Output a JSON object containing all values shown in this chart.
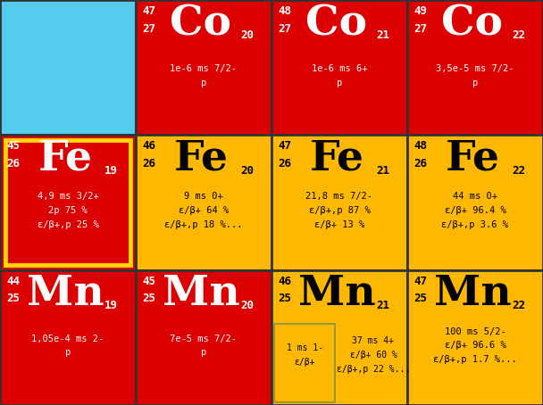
{
  "colors": {
    "red": "#DD0000",
    "yellow": "#FFB800",
    "cyan": "#55CCEE"
  },
  "cells": [
    {
      "row": 0,
      "col": 0,
      "color": "cyan"
    },
    {
      "row": 0,
      "col": 1,
      "color": "red",
      "mass": "47",
      "atomic": "27",
      "symbol": "Co",
      "neutron": "20",
      "info": "1e-6 ms 7/2-\np"
    },
    {
      "row": 0,
      "col": 2,
      "color": "red",
      "mass": "48",
      "atomic": "27",
      "symbol": "Co",
      "neutron": "21",
      "info": "1e-6 ms 6+\np"
    },
    {
      "row": 0,
      "col": 3,
      "color": "red",
      "mass": "49",
      "atomic": "27",
      "symbol": "Co",
      "neutron": "22",
      "info": "3,5e-5 ms 7/2-\np"
    },
    {
      "row": 1,
      "col": 0,
      "color": "red",
      "mass": "45",
      "atomic": "26",
      "symbol": "Fe",
      "neutron": "19",
      "info": "4,9 ms 3/2+\n2p 75 %\nε/β+,p 25 %",
      "highlighted": true
    },
    {
      "row": 1,
      "col": 1,
      "color": "yellow",
      "mass": "46",
      "atomic": "26",
      "symbol": "Fe",
      "neutron": "20",
      "info": "9 ms 0+\nε/β+ 64 %\nε/β+,p 18 %..."
    },
    {
      "row": 1,
      "col": 2,
      "color": "yellow",
      "mass": "47",
      "atomic": "26",
      "symbol": "Fe",
      "neutron": "21",
      "info": "21,8 ms 7/2-\nε/β+,p 87 %\nε/β+ 13 %"
    },
    {
      "row": 1,
      "col": 3,
      "color": "yellow",
      "mass": "48",
      "atomic": "26",
      "symbol": "Fe",
      "neutron": "22",
      "info": "44 ms 0+\nε/β+ 96.4 %\nε/β+,p 3.6 %"
    },
    {
      "row": 2,
      "col": 0,
      "color": "red",
      "mass": "44",
      "atomic": "25",
      "symbol": "Mn",
      "neutron": "19",
      "info": "1,05e-4 ms 2-\np"
    },
    {
      "row": 2,
      "col": 1,
      "color": "red",
      "mass": "45",
      "atomic": "25",
      "symbol": "Mn",
      "neutron": "20",
      "info": "7e-5 ms 7/2-\np"
    },
    {
      "row": 2,
      "col": 2,
      "color": "yellow",
      "mass": "46",
      "atomic": "25",
      "symbol": "Mn",
      "neutron": "21",
      "split": true,
      "info_left": "1 ms 1-\nε/β+",
      "info_right": "37 ms 4+\nε/β+ 60 %\nε/β+,p 22 %..."
    },
    {
      "row": 2,
      "col": 3,
      "color": "yellow",
      "mass": "47",
      "atomic": "25",
      "symbol": "Mn",
      "neutron": "22",
      "info": "100 ms 5/2-\nε/β+ 96.6 %\nε/β+,p 1.7 %..."
    }
  ],
  "ncols": 4,
  "nrows": 3,
  "highlight_color": "#FFD700",
  "border_color": "#333333",
  "split_box_color": "#999933",
  "fig_bg": "#888888"
}
